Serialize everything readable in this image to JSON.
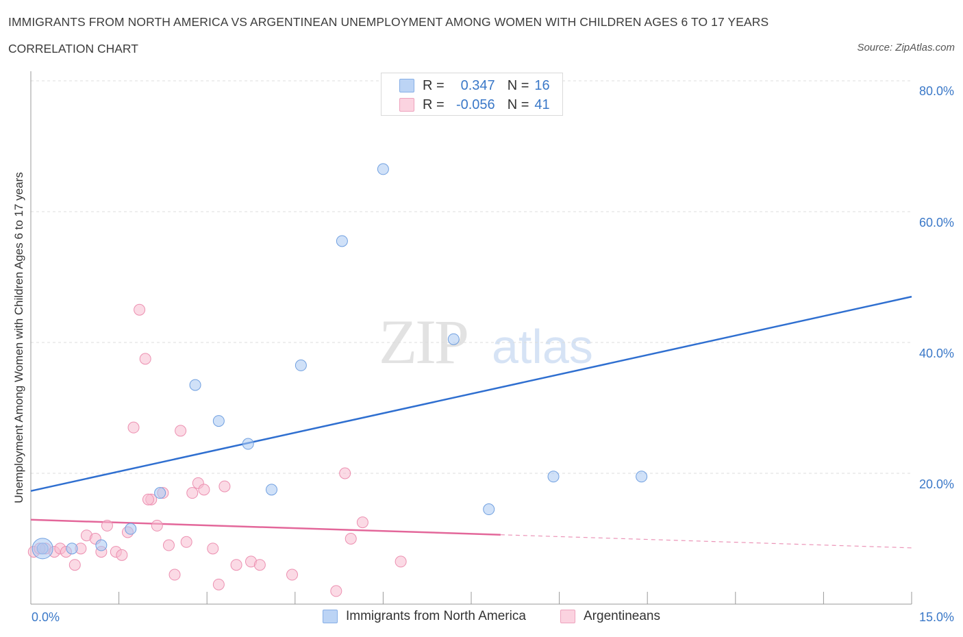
{
  "title": "IMMIGRANTS FROM NORTH AMERICA VS ARGENTINEAN UNEMPLOYMENT AMONG WOMEN WITH CHILDREN AGES 6 TO 17 YEARS",
  "subtitle": "CORRELATION CHART",
  "source": "Source: ZipAtlas.com",
  "watermark": {
    "zip": "ZIP",
    "atlas": "atlas"
  },
  "legend": {
    "r_label": "R =",
    "n_label": "N =",
    "rows": [
      {
        "r": "0.347",
        "n": "16",
        "color": "#a9c8f2"
      },
      {
        "r": "-0.056",
        "n": "41",
        "color": "#f7bcd0"
      }
    ]
  },
  "chart_data": {
    "type": "scatter",
    "ylabel": "Unemployment Among Women with Children Ages 6 to 17 years",
    "xlim": [
      0,
      15
    ],
    "ylim": [
      0,
      80
    ],
    "x_tick_labels": [
      "0.0%",
      "15.0%"
    ],
    "y_tick_labels": [
      "20.0%",
      "40.0%",
      "60.0%",
      "80.0%"
    ],
    "y_ticks": [
      20,
      40,
      60,
      80
    ],
    "grid": true,
    "series": [
      {
        "name": "Immigrants from North America",
        "color": "#a9c8f2",
        "edge": "#6f9fe0",
        "line_color": "#2f6fd0",
        "points": [
          [
            0.2,
            8.5
          ],
          [
            0.7,
            8.5
          ],
          [
            1.2,
            9.0
          ],
          [
            1.7,
            11.5
          ],
          [
            2.2,
            17.0
          ],
          [
            2.8,
            33.5
          ],
          [
            3.2,
            28.0
          ],
          [
            3.7,
            24.5
          ],
          [
            4.1,
            17.5
          ],
          [
            4.6,
            36.5
          ],
          [
            5.3,
            55.5
          ],
          [
            6.0,
            66.5
          ],
          [
            7.2,
            40.5
          ],
          [
            7.8,
            14.5
          ],
          [
            8.9,
            19.5
          ],
          [
            10.4,
            19.5
          ]
        ],
        "trend": {
          "x0": 0,
          "y0": 17.3,
          "x1": 15,
          "y1": 47.0
        }
      },
      {
        "name": "Argentineans",
        "color": "#f7bcd0",
        "edge": "#ec8fb0",
        "line_color": "#e3679a",
        "points": [
          [
            0.05,
            8.0
          ],
          [
            0.25,
            8.5
          ],
          [
            0.4,
            8.0
          ],
          [
            0.5,
            8.5
          ],
          [
            0.6,
            8.0
          ],
          [
            0.75,
            6.0
          ],
          [
            0.85,
            8.5
          ],
          [
            0.95,
            10.5
          ],
          [
            1.1,
            10.0
          ],
          [
            1.2,
            8.0
          ],
          [
            1.3,
            12.0
          ],
          [
            1.45,
            8.0
          ],
          [
            1.55,
            7.5
          ],
          [
            1.65,
            11.0
          ],
          [
            1.75,
            27.0
          ],
          [
            1.85,
            45.0
          ],
          [
            1.95,
            37.5
          ],
          [
            2.05,
            16.0
          ],
          [
            2.15,
            12.0
          ],
          [
            2.25,
            17.0
          ],
          [
            2.35,
            9.0
          ],
          [
            2.45,
            4.5
          ],
          [
            2.55,
            26.5
          ],
          [
            2.65,
            9.5
          ],
          [
            2.75,
            17.0
          ],
          [
            2.85,
            18.5
          ],
          [
            2.95,
            17.5
          ],
          [
            3.1,
            8.5
          ],
          [
            3.2,
            3.0
          ],
          [
            3.3,
            18.0
          ],
          [
            3.5,
            6.0
          ],
          [
            3.75,
            6.5
          ],
          [
            3.9,
            6.0
          ],
          [
            4.45,
            4.5
          ],
          [
            5.2,
            2.0
          ],
          [
            5.35,
            20.0
          ],
          [
            5.45,
            10.0
          ],
          [
            5.65,
            12.5
          ],
          [
            6.3,
            6.5
          ],
          [
            2.0,
            16.0
          ],
          [
            0.15,
            8.5
          ]
        ],
        "trend": {
          "x0": 0,
          "y0": 12.9,
          "x1": 15,
          "y1": 8.6,
          "solid_until": 8.0
        }
      }
    ]
  },
  "bottom_legend": [
    {
      "label": "Immigrants from North America",
      "color": "#a9c8f2"
    },
    {
      "label": "Argentineans",
      "color": "#f7bcd0"
    }
  ]
}
